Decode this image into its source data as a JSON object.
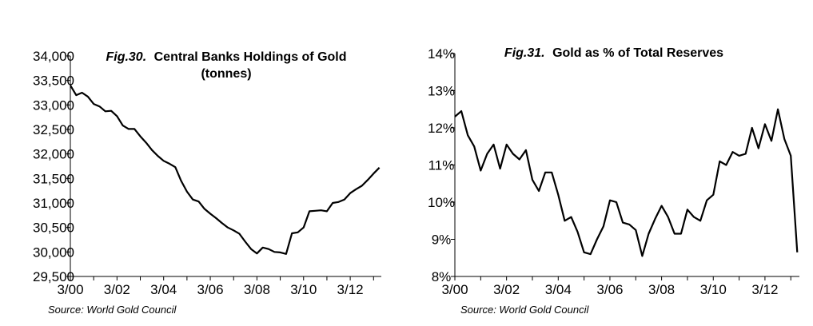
{
  "colors": {
    "line": "#000000",
    "axis": "#000000",
    "background": "#ffffff"
  },
  "chart_data": [
    {
      "type": "line",
      "title_fig": "Fig.30.",
      "title": "Central Banks Holdings of Gold",
      "title_line2": "(tonnes)",
      "source": "Source: World Gold Council",
      "xlabel": "",
      "ylabel": "",
      "grid": false,
      "ylim": [
        29500,
        34000
      ],
      "xlim": [
        2000.167,
        2013.5
      ],
      "yticks": [
        {
          "v": 29500,
          "label": "29,500"
        },
        {
          "v": 30000,
          "label": "30,000"
        },
        {
          "v": 30500,
          "label": "30,500"
        },
        {
          "v": 31000,
          "label": "31,000"
        },
        {
          "v": 31500,
          "label": "31,500"
        },
        {
          "v": 32000,
          "label": "32,000"
        },
        {
          "v": 32500,
          "label": "32,500"
        },
        {
          "v": 33000,
          "label": "33,000"
        },
        {
          "v": 33500,
          "label": "33,500"
        },
        {
          "v": 34000,
          "label": "34,000"
        }
      ],
      "xticks": [
        {
          "v": 2000.167,
          "label": "3/00"
        },
        {
          "v": 2002.167,
          "label": "3/02"
        },
        {
          "v": 2004.167,
          "label": "3/04"
        },
        {
          "v": 2006.167,
          "label": "3/06"
        },
        {
          "v": 2008.167,
          "label": "3/08"
        },
        {
          "v": 2010.167,
          "label": "3/10"
        },
        {
          "v": 2012.167,
          "label": "3/12"
        }
      ],
      "series": [
        {
          "x": [
            2000.167,
            2000.417,
            2000.667,
            2000.917,
            2001.167,
            2001.417,
            2001.667,
            2001.917,
            2002.167,
            2002.417,
            2002.667,
            2002.917,
            2003.167,
            2003.417,
            2003.667,
            2003.917,
            2004.167,
            2004.417,
            2004.667,
            2004.917,
            2005.167,
            2005.417,
            2005.667,
            2005.917,
            2006.167,
            2006.417,
            2006.667,
            2006.917,
            2007.167,
            2007.417,
            2007.667,
            2007.917,
            2008.167,
            2008.417,
            2008.667,
            2008.917,
            2009.167,
            2009.417,
            2009.667,
            2009.917,
            2010.167,
            2010.417,
            2010.667,
            2010.917,
            2011.167,
            2011.417,
            2011.667,
            2011.917,
            2012.167,
            2012.417,
            2012.667,
            2012.917,
            2013.167,
            2013.417
          ],
          "values": [
            33400,
            33200,
            33250,
            33170,
            33020,
            32970,
            32870,
            32880,
            32770,
            32580,
            32510,
            32510,
            32360,
            32230,
            32080,
            31960,
            31860,
            31800,
            31730,
            31450,
            31230,
            31070,
            31030,
            30880,
            30780,
            30690,
            30590,
            30500,
            30440,
            30370,
            30210,
            30060,
            29970,
            30090,
            30060,
            30000,
            29990,
            29960,
            30380,
            30400,
            30500,
            30830,
            30840,
            30850,
            30830,
            31000,
            31020,
            31070,
            31200,
            31280,
            31350,
            31470,
            31600,
            31720
          ]
        }
      ]
    },
    {
      "type": "line",
      "title_fig": "Fig.31.",
      "title": "Gold as % of Total Reserves",
      "source": "Source: World Gold Council",
      "xlabel": "",
      "ylabel": "",
      "grid": false,
      "ylim": [
        8,
        14
      ],
      "xlim": [
        2000.167,
        2013.5
      ],
      "yticks": [
        {
          "v": 8,
          "label": "8%"
        },
        {
          "v": 9,
          "label": "9%"
        },
        {
          "v": 10,
          "label": "10%"
        },
        {
          "v": 11,
          "label": "11%"
        },
        {
          "v": 12,
          "label": "12%"
        },
        {
          "v": 13,
          "label": "13%"
        },
        {
          "v": 14,
          "label": "14%"
        }
      ],
      "xticks": [
        {
          "v": 2000.167,
          "label": "3/00"
        },
        {
          "v": 2002.167,
          "label": "3/02"
        },
        {
          "v": 2004.167,
          "label": "3/04"
        },
        {
          "v": 2006.167,
          "label": "3/06"
        },
        {
          "v": 2008.167,
          "label": "3/08"
        },
        {
          "v": 2010.167,
          "label": "3/10"
        },
        {
          "v": 2012.167,
          "label": "3/12"
        }
      ],
      "series": [
        {
          "x": [
            2000.167,
            2000.417,
            2000.667,
            2000.917,
            2001.167,
            2001.417,
            2001.667,
            2001.917,
            2002.167,
            2002.417,
            2002.667,
            2002.917,
            2003.167,
            2003.417,
            2003.667,
            2003.917,
            2004.167,
            2004.417,
            2004.667,
            2004.917,
            2005.167,
            2005.417,
            2005.667,
            2005.917,
            2006.167,
            2006.417,
            2006.667,
            2006.917,
            2007.167,
            2007.417,
            2007.667,
            2007.917,
            2008.167,
            2008.417,
            2008.667,
            2008.917,
            2009.167,
            2009.417,
            2009.667,
            2009.917,
            2010.167,
            2010.417,
            2010.667,
            2010.917,
            2011.167,
            2011.417,
            2011.667,
            2011.917,
            2012.167,
            2012.417,
            2012.667,
            2012.917,
            2013.167,
            2013.417
          ],
          "values": [
            12.3,
            12.45,
            11.8,
            11.5,
            10.85,
            11.3,
            11.55,
            10.9,
            11.55,
            11.3,
            11.15,
            11.4,
            10.6,
            10.3,
            10.8,
            10.8,
            10.2,
            9.5,
            9.6,
            9.2,
            8.65,
            8.6,
            9.0,
            9.35,
            10.05,
            10.0,
            9.45,
            9.4,
            9.25,
            8.55,
            9.15,
            9.55,
            9.9,
            9.6,
            9.15,
            9.15,
            9.8,
            9.6,
            9.5,
            10.05,
            10.2,
            11.1,
            11.0,
            11.35,
            11.25,
            11.3,
            12.0,
            11.45,
            12.1,
            11.65,
            12.5,
            11.7,
            11.25,
            8.65
          ]
        }
      ]
    }
  ]
}
